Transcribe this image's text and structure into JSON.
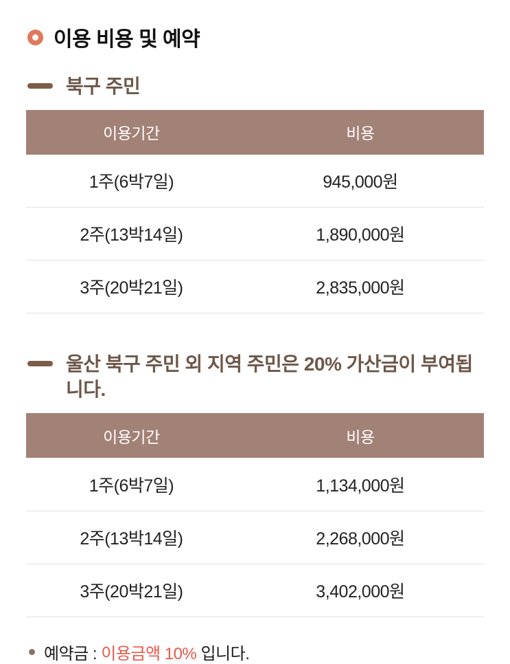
{
  "page": {
    "title": "이용 비용 및 예약"
  },
  "sections": [
    {
      "heading": "북구 주민",
      "table": {
        "headers": [
          "이용기간",
          "비용"
        ],
        "rows": [
          [
            "1주(6박7일)",
            "945,000원"
          ],
          [
            "2주(13박14일)",
            "1,890,000원"
          ],
          [
            "3주(20박21일)",
            "2,835,000원"
          ]
        ]
      }
    },
    {
      "heading": "울산 북구 주민 외 지역 주민은 20% 가산금이 부여됩니다.",
      "table": {
        "headers": [
          "이용기간",
          "비용"
        ],
        "rows": [
          [
            "1주(6박7일)",
            "1,134,000원"
          ],
          [
            "2주(13박14일)",
            "2,268,000원"
          ],
          [
            "3주(20박21일)",
            "3,402,000원"
          ]
        ]
      }
    }
  ],
  "note": {
    "prefix": "예약금 : ",
    "highlight": "이용금액 10%",
    "suffix": " 입니다."
  },
  "colors": {
    "accent": "#e0795c",
    "header_bg": "#a28176",
    "heading_text": "#6d574a",
    "dash_color": "#7d5d49",
    "dot_color": "#8a7265",
    "highlight_text": "#e8584b"
  }
}
